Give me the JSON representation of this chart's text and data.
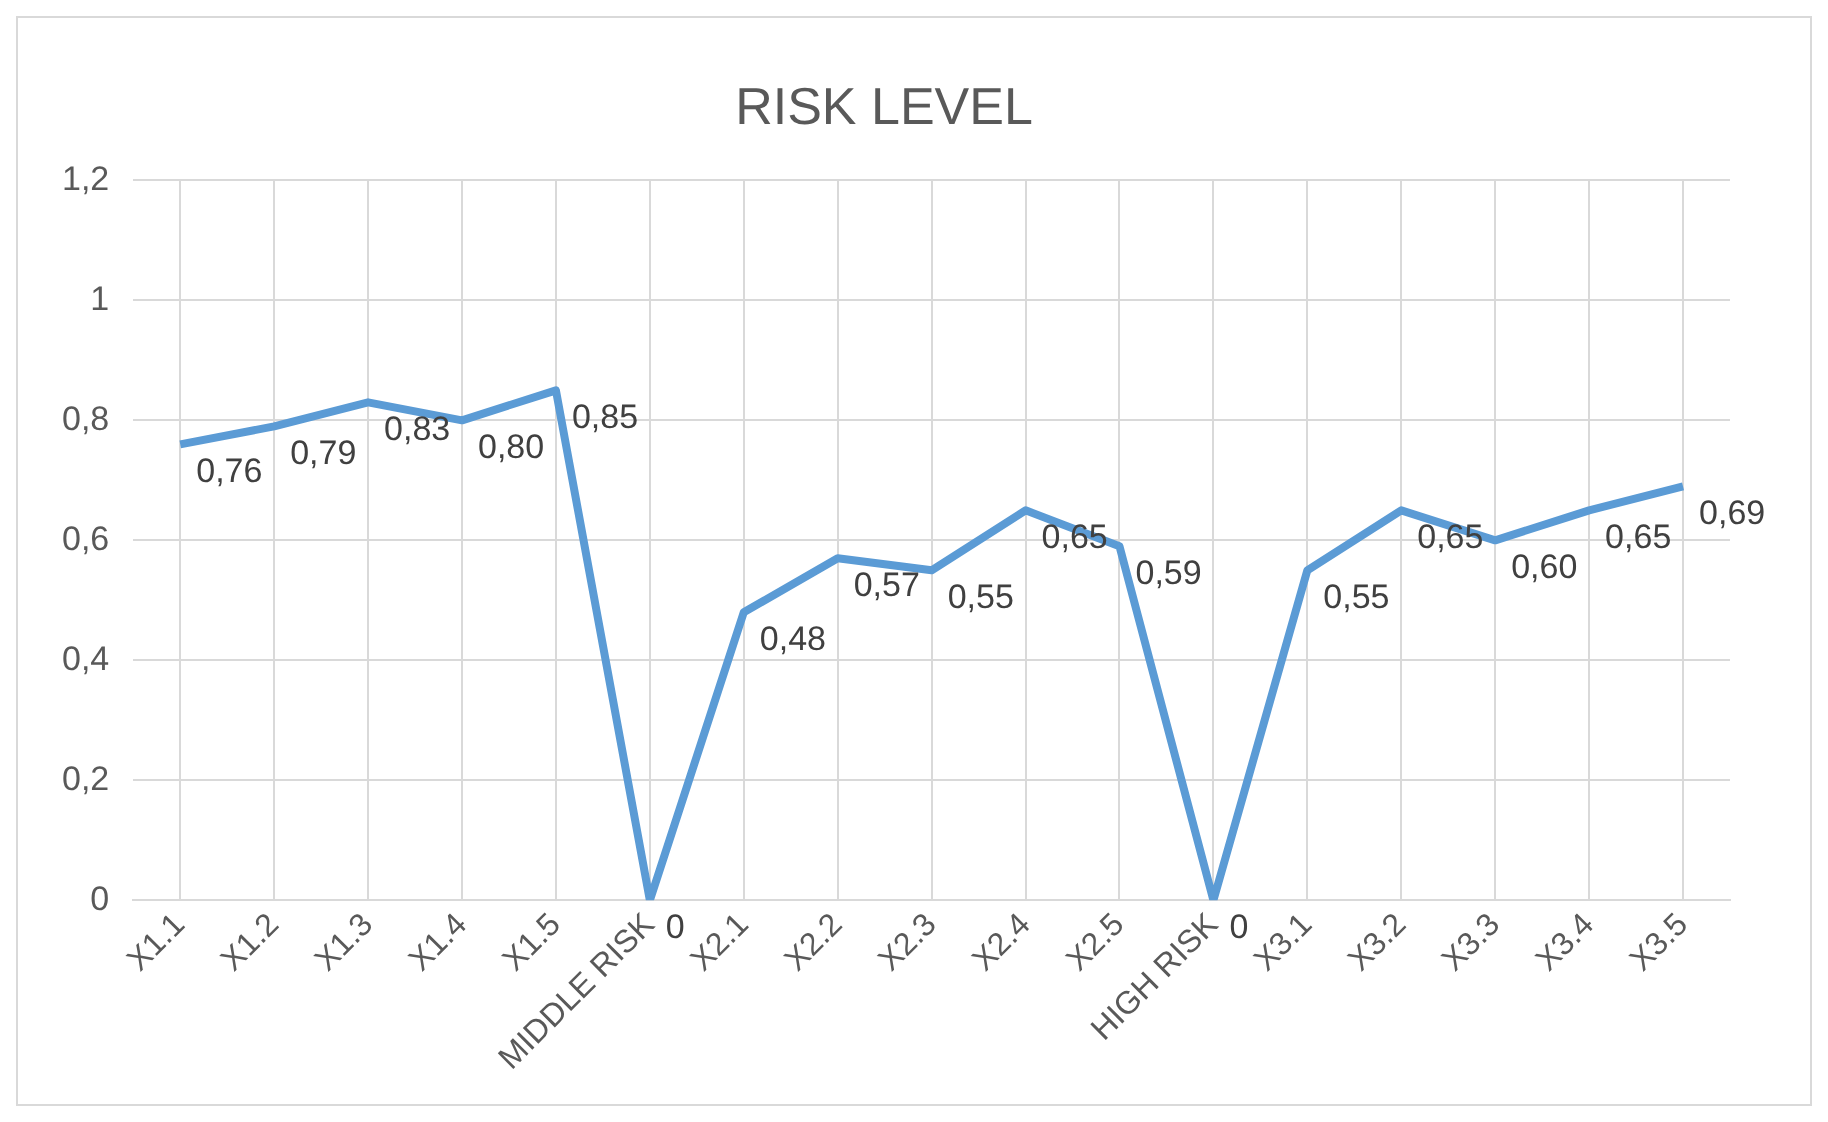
{
  "chart_data": {
    "type": "line",
    "title": "RISK LEVEL",
    "categories": [
      "X1.1",
      "X1.2",
      "X1.3",
      "X1.4",
      "X1.5",
      "MIDDLE RISK",
      "X2.1",
      "X2.2",
      "X2.3",
      "X2.4",
      "X2.5",
      "HIGH RISK",
      "X3.1",
      "X3.2",
      "X3.3",
      "X3.4",
      "X3.5"
    ],
    "series": [
      {
        "color": "#5b9bd5",
        "values": [
          0.76,
          0.79,
          0.83,
          0.8,
          0.85,
          0,
          0.48,
          0.57,
          0.55,
          0.65,
          0.59,
          0,
          0.55,
          0.65,
          0.6,
          0.65,
          0.69
        ],
        "value_labels": [
          "0,76",
          "0,79",
          "0,83",
          "0,80",
          "0,85",
          "0",
          "0,48",
          "0,57",
          "0,55",
          "0,65",
          "0,59",
          "0",
          "0,55",
          "0,65",
          "0,60",
          "0,65",
          "0,69"
        ]
      }
    ],
    "ylim": [
      0,
      1.2
    ],
    "yticks": [
      {
        "value": 0,
        "label": "0"
      },
      {
        "value": 0.2,
        "label": "0,2"
      },
      {
        "value": 0.4,
        "label": "0,4"
      },
      {
        "value": 0.6,
        "label": "0,6"
      },
      {
        "value": 0.8,
        "label": "0,8"
      },
      {
        "value": 1,
        "label": "1"
      },
      {
        "value": 1.2,
        "label": "1,2"
      }
    ],
    "grid": true,
    "legend": false,
    "marker": "none",
    "line_style": "solid"
  }
}
